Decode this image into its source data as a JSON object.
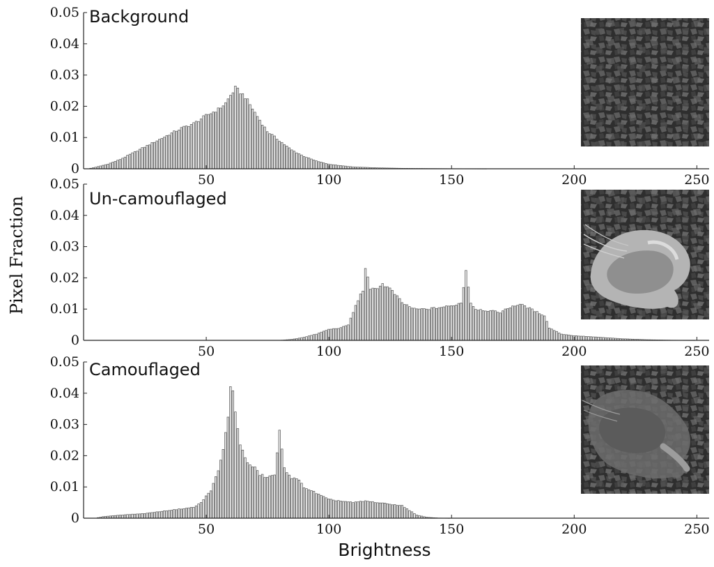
{
  "chart_data": {
    "xlabel": "Brightness",
    "ylabel": "Pixel Fraction",
    "panels": [
      {
        "type": "bar",
        "title": "Background",
        "xlim": [
          0,
          255
        ],
        "ylim": [
          0,
          0.05
        ],
        "xticks": [
          "50",
          "100",
          "150",
          "200",
          "250"
        ],
        "yticks": [
          "0",
          "0.01",
          "0.02",
          "0.03",
          "0.04",
          "0.05"
        ],
        "anchors": [
          [
            2,
            0
          ],
          [
            5,
            0.0005
          ],
          [
            10,
            0.0015
          ],
          [
            15,
            0.003
          ],
          [
            20,
            0.005
          ],
          [
            25,
            0.007
          ],
          [
            30,
            0.009
          ],
          [
            35,
            0.011
          ],
          [
            40,
            0.013
          ],
          [
            45,
            0.0145
          ],
          [
            50,
            0.017
          ],
          [
            55,
            0.019
          ],
          [
            58,
            0.021
          ],
          [
            60,
            0.0235
          ],
          [
            62,
            0.0258
          ],
          [
            64,
            0.0245
          ],
          [
            66,
            0.023
          ],
          [
            70,
            0.018
          ],
          [
            75,
            0.012
          ],
          [
            80,
            0.009
          ],
          [
            85,
            0.006
          ],
          [
            90,
            0.004
          ],
          [
            95,
            0.0025
          ],
          [
            100,
            0.0015
          ],
          [
            105,
            0.001
          ],
          [
            110,
            0.0006
          ],
          [
            120,
            0.0003
          ],
          [
            130,
            0.00015
          ],
          [
            150,
            5e-05
          ],
          [
            165,
            0
          ]
        ],
        "has_thumbnail": true
      },
      {
        "type": "bar",
        "title": "Un-camouflaged",
        "xlim": [
          0,
          255
        ],
        "ylim": [
          0,
          0.05
        ],
        "xticks": [
          "50",
          "100",
          "150",
          "200",
          "250"
        ],
        "yticks": [
          "0",
          "0.01",
          "0.02",
          "0.03",
          "0.04",
          "0.05"
        ],
        "anchors": [
          [
            80,
            0
          ],
          [
            85,
            0.0003
          ],
          [
            90,
            0.001
          ],
          [
            95,
            0.002
          ],
          [
            100,
            0.0035
          ],
          [
            105,
            0.004
          ],
          [
            108,
            0.005
          ],
          [
            110,
            0.009
          ],
          [
            112,
            0.013
          ],
          [
            114,
            0.016
          ],
          [
            115,
            0.0235
          ],
          [
            117,
            0.016
          ],
          [
            120,
            0.017
          ],
          [
            122,
            0.018
          ],
          [
            125,
            0.0165
          ],
          [
            128,
            0.014
          ],
          [
            130,
            0.012
          ],
          [
            135,
            0.01
          ],
          [
            140,
            0.01
          ],
          [
            145,
            0.0105
          ],
          [
            150,
            0.011
          ],
          [
            154,
            0.012
          ],
          [
            156,
            0.0225
          ],
          [
            158,
            0.012
          ],
          [
            160,
            0.01
          ],
          [
            165,
            0.0095
          ],
          [
            170,
            0.009
          ],
          [
            175,
            0.011
          ],
          [
            178,
            0.0115
          ],
          [
            180,
            0.011
          ],
          [
            185,
            0.009
          ],
          [
            188,
            0.008
          ],
          [
            190,
            0.004
          ],
          [
            195,
            0.002
          ],
          [
            200,
            0.0015
          ],
          [
            210,
            0.001
          ],
          [
            220,
            0.0005
          ],
          [
            230,
            0.0002
          ],
          [
            240,
            5e-05
          ],
          [
            250,
            0
          ]
        ],
        "has_thumbnail": true
      },
      {
        "type": "bar",
        "title": "Camouflaged",
        "xlim": [
          0,
          255
        ],
        "ylim": [
          0,
          0.05
        ],
        "xticks": [
          "50",
          "100",
          "150",
          "200",
          "250"
        ],
        "yticks": [
          "0",
          "0.01",
          "0.02",
          "0.03",
          "0.04",
          "0.05"
        ],
        "anchors": [
          [
            5,
            0
          ],
          [
            8,
            0.0005
          ],
          [
            15,
            0.001
          ],
          [
            25,
            0.0015
          ],
          [
            35,
            0.0025
          ],
          [
            40,
            0.003
          ],
          [
            45,
            0.0035
          ],
          [
            48,
            0.005
          ],
          [
            52,
            0.009
          ],
          [
            55,
            0.015
          ],
          [
            57,
            0.022
          ],
          [
            59,
            0.032
          ],
          [
            60,
            0.043
          ],
          [
            61,
            0.04
          ],
          [
            62,
            0.034
          ],
          [
            64,
            0.024
          ],
          [
            66,
            0.019
          ],
          [
            68,
            0.017
          ],
          [
            70,
            0.016
          ],
          [
            72,
            0.014
          ],
          [
            75,
            0.013
          ],
          [
            78,
            0.014
          ],
          [
            80,
            0.0275
          ],
          [
            82,
            0.016
          ],
          [
            85,
            0.013
          ],
          [
            88,
            0.012
          ],
          [
            90,
            0.01
          ],
          [
            95,
            0.008
          ],
          [
            100,
            0.006
          ],
          [
            105,
            0.0055
          ],
          [
            110,
            0.005
          ],
          [
            115,
            0.0055
          ],
          [
            120,
            0.005
          ],
          [
            125,
            0.0045
          ],
          [
            130,
            0.004
          ],
          [
            133,
            0.0025
          ],
          [
            136,
            0.001
          ],
          [
            140,
            0.0003
          ],
          [
            145,
            5e-05
          ],
          [
            150,
            0
          ]
        ],
        "has_thumbnail": true
      }
    ]
  }
}
